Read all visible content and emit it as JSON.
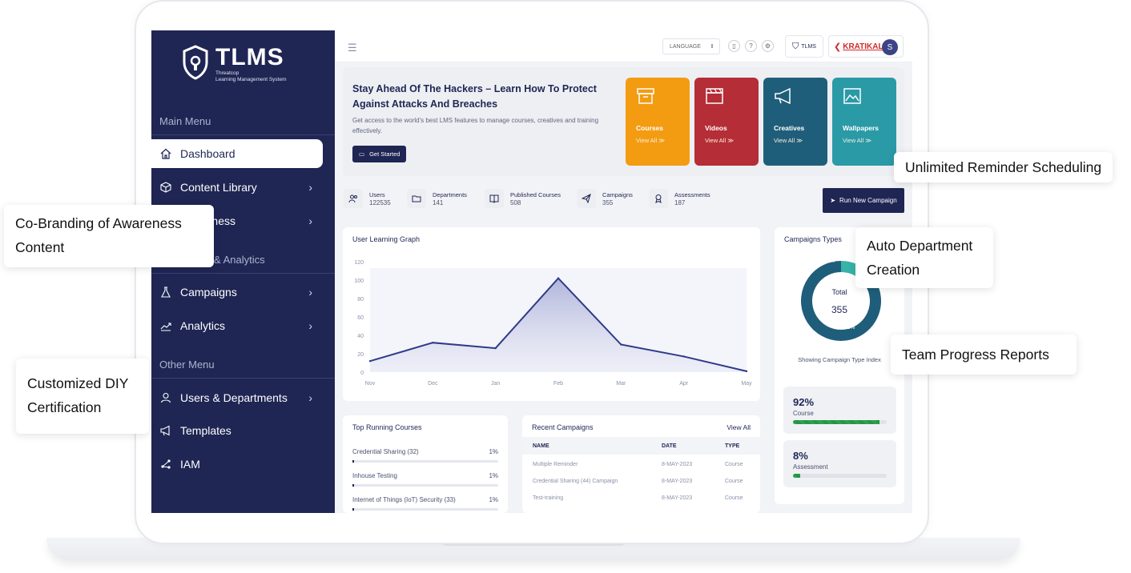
{
  "logo": {
    "name": "TLMS",
    "subtitle_line1": "Threatcop",
    "subtitle_line2": "Learning Management System"
  },
  "sidebar": {
    "main_menu": "Main Menu",
    "items": [
      {
        "label": "Dashboard",
        "icon": "home-icon"
      },
      {
        "label": "Content Library",
        "icon": "box-icon"
      },
      {
        "label": "Awareness",
        "icon": "book-icon"
      },
      {
        "label": "& Analytics",
        "icon": ""
      },
      {
        "label": "Campaigns",
        "icon": "flask-icon"
      },
      {
        "label": "Analytics",
        "icon": "trend-icon"
      }
    ],
    "other_menu": "Other Menu",
    "other_items": [
      {
        "label": "Users & Departments",
        "icon": "user-icon"
      },
      {
        "label": "Templates",
        "icon": "megaphone-icon"
      },
      {
        "label": "IAM",
        "icon": "network-icon"
      }
    ]
  },
  "header": {
    "language": "LANGUAGE",
    "tlms_badge": "TLMS",
    "brand": "KRATIKAL",
    "avatar": "S"
  },
  "hero": {
    "title": "Stay Ahead Of The Hackers – Learn How To Protect Against Attacks And Breaches",
    "text": "Get access to the world's best LMS features to manage courses, creatives and training effectively.",
    "cta": "Get Started",
    "tiles": [
      {
        "title": "Courses",
        "link": "View All ≫",
        "color": "#f39c12"
      },
      {
        "title": "Videos",
        "link": "View All ≫",
        "color": "#b52d36"
      },
      {
        "title": "Creatives",
        "link": "View All ≫",
        "color": "#1f5e7a"
      },
      {
        "title": "Wallpapers",
        "link": "View All ≫",
        "color": "#2a9aa6"
      }
    ]
  },
  "stats": [
    {
      "label": "Users",
      "value": "122535"
    },
    {
      "label": "Departments",
      "value": "141"
    },
    {
      "label": "Published Courses",
      "value": "508"
    },
    {
      "label": "Campaigns",
      "value": "355"
    },
    {
      "label": "Assessments",
      "value": "187"
    }
  ],
  "run_campaign": "Run New Campaign",
  "learning_graph": {
    "title": "User Learning Graph"
  },
  "chart_data": {
    "type": "area",
    "categories": [
      "Nov",
      "Dec",
      "Jan",
      "Feb",
      "Mar",
      "Apr",
      "May"
    ],
    "values": [
      12,
      32,
      26,
      102,
      30,
      17,
      1
    ],
    "yticks": [
      0,
      20,
      40,
      60,
      80,
      100,
      120
    ],
    "ylim": [
      0,
      120
    ],
    "title": "User Learning Graph"
  },
  "campaign_types": {
    "title": "Campaigns Types",
    "total_label": "Total",
    "total": "355",
    "slices": [
      {
        "pct": "8.5%",
        "value": 8.5,
        "color": "#37b3a8"
      },
      {
        "pct": "91.5%",
        "value": 91.5,
        "color": "#1f5e7a"
      }
    ],
    "caption": "Showing Campaign Type Index"
  },
  "progress": [
    {
      "value": "92%",
      "label": "Course",
      "fraction": 0.92
    },
    {
      "value": "8%",
      "label": "Assessment",
      "fraction": 0.08
    }
  ],
  "top_courses": {
    "title": "Top Running Courses",
    "rows": [
      {
        "name": "Credential Sharing (32)",
        "pct": "1%"
      },
      {
        "name": "Inhouse Testing",
        "pct": "1%"
      },
      {
        "name": "Internet of Things (IoT) Security (33)",
        "pct": "1%"
      }
    ]
  },
  "recent": {
    "title": "Recent Campaigns",
    "view_all": "View All",
    "headers": [
      "NAME",
      "DATE",
      "TYPE"
    ],
    "rows": [
      [
        "Multiple Reminder",
        "8-MAY-2023",
        "Course"
      ],
      [
        "Credential Sharing (44) Campaign",
        "8-MAY-2023",
        "Course"
      ],
      [
        "Test-training",
        "8-MAY-2023",
        "Course"
      ]
    ]
  },
  "callouts": {
    "reminder": "Unlimited Reminder Scheduling",
    "cobrand1": "Co-Branding of Awareness",
    "cobrand2": "Content",
    "dept1": "Auto Department",
    "dept2": "Creation",
    "team": "Team Progress Reports",
    "diy1": "Customized DIY",
    "diy2": "Certification"
  }
}
